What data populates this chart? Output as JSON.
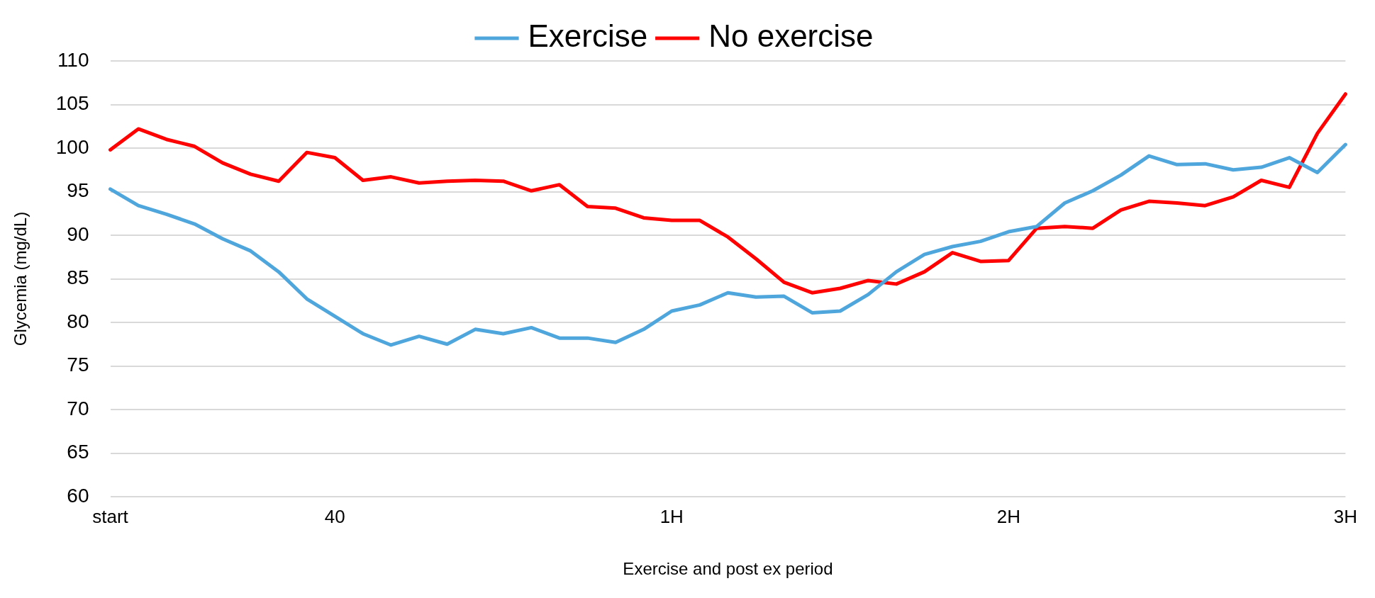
{
  "chart_data": {
    "type": "line",
    "xlabel": "Exercise and post ex period",
    "ylabel": "Glycemia (mg/dL)",
    "categories": [
      "start",
      null,
      null,
      null,
      null,
      null,
      null,
      null,
      "40",
      null,
      null,
      null,
      null,
      null,
      null,
      null,
      null,
      null,
      null,
      null,
      "1H",
      null,
      null,
      null,
      null,
      null,
      null,
      null,
      null,
      null,
      null,
      null,
      "2H",
      null,
      null,
      null,
      null,
      null,
      null,
      null,
      null,
      null,
      null,
      null,
      "3H"
    ],
    "series": [
      {
        "name": "Exercise",
        "color": "#4ea6dc",
        "values": [
          95.3,
          93.4,
          92.4,
          91.3,
          89.6,
          88.2,
          85.8,
          82.7,
          80.7,
          78.7,
          77.4,
          78.4,
          77.5,
          79.2,
          78.7,
          79.4,
          78.2,
          78.2,
          77.7,
          79.2,
          81.3,
          82.0,
          83.4,
          82.9,
          83.0,
          81.1,
          81.3,
          83.2,
          85.8,
          87.8,
          88.7,
          89.3,
          90.4,
          91.0,
          93.7,
          95.1,
          96.9,
          99.1,
          98.1,
          98.2,
          97.5,
          97.8,
          98.9,
          97.2,
          100.4
        ]
      },
      {
        "name": "No exercise",
        "color": "#ff0000",
        "values": [
          99.8,
          102.2,
          101.0,
          100.2,
          98.3,
          97.0,
          96.2,
          99.5,
          98.9,
          96.3,
          96.7,
          96.0,
          96.2,
          96.3,
          96.2,
          95.1,
          95.8,
          93.3,
          93.1,
          92.0,
          91.7,
          91.7,
          89.8,
          87.3,
          84.6,
          83.4,
          83.9,
          84.8,
          84.4,
          85.8,
          88.0,
          87.0,
          87.1,
          90.8,
          91.0,
          90.8,
          92.9,
          93.9,
          93.7,
          93.4,
          94.4,
          96.3,
          95.5,
          101.7,
          106.2
        ]
      }
    ],
    "ylim": [
      60,
      110
    ],
    "yticks": [
      60,
      65,
      70,
      75,
      80,
      85,
      90,
      95,
      100,
      105,
      110
    ],
    "grid": "y",
    "legend": "top",
    "marker": "none",
    "line_style": "solid"
  }
}
